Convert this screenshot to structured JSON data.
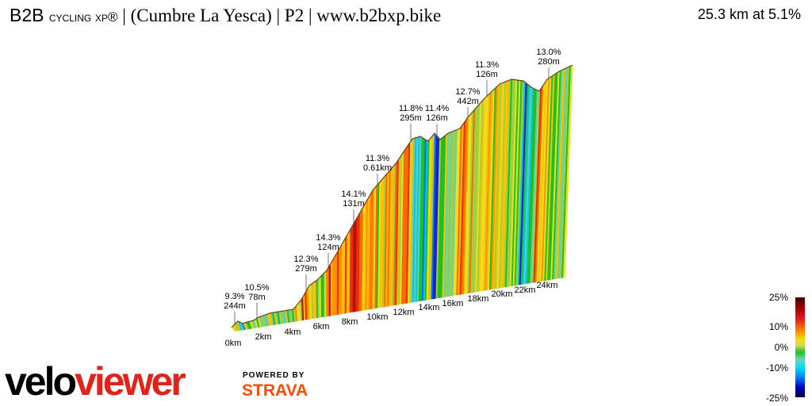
{
  "title": {
    "part1": "B2B",
    "part2": "cycling xp®",
    "part3": " | (Cumbre La Yesca) | P2 | www.b2bxp.bike"
  },
  "summary": "25.3 km at 5.1%",
  "annotations": [
    {
      "grade": "9.3%",
      "length": "244m"
    },
    {
      "grade": "10.5%",
      "length": "78m"
    },
    {
      "grade": "12.3%",
      "length": "279m"
    },
    {
      "grade": "14.3%",
      "length": "124m"
    },
    {
      "grade": "14.1%",
      "length": "131m"
    },
    {
      "grade": "11.3%",
      "length": "0.61km"
    },
    {
      "grade": "11.8%",
      "length": "295m"
    },
    {
      "grade": "11.4%",
      "length": "126m"
    },
    {
      "grade": "12.7%",
      "length": "442m"
    },
    {
      "grade": "11.3%",
      "length": "126m"
    },
    {
      "grade": "13.0%",
      "length": "280m"
    }
  ],
  "distance_ticks": [
    "0km",
    "2km",
    "4km",
    "6km",
    "8km",
    "10km",
    "12km",
    "14km",
    "16km",
    "18km",
    "20km",
    "22km",
    "24km"
  ],
  "legend": {
    "labels": [
      "25%",
      "10%",
      "0%",
      "-10%",
      "-25%"
    ]
  },
  "branding": {
    "logo_a": "velo",
    "logo_b": "viewer",
    "powered": "POWERED BY",
    "strava": "STRAVA"
  },
  "colors": {
    "strava": "#fc4c02",
    "veloviewer_red": "#e2231a"
  }
}
